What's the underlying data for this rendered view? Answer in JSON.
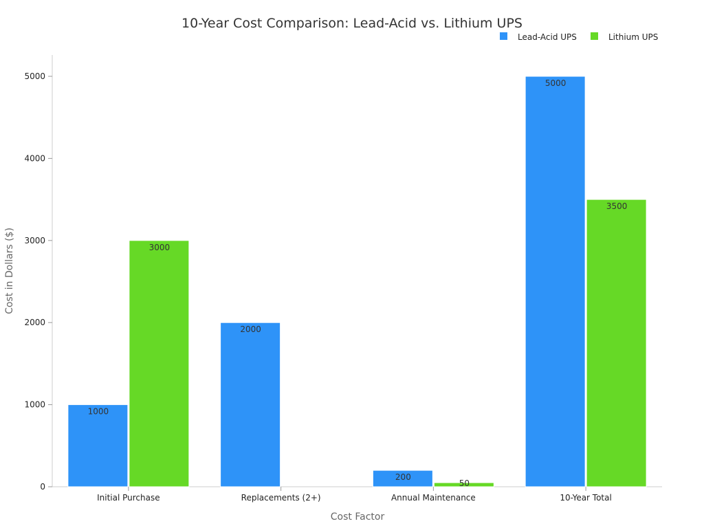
{
  "chart_data": {
    "type": "bar",
    "title": "10-Year Cost Comparison: Lead-Acid vs. Lithium UPS",
    "xlabel": "Cost Factor",
    "ylabel": "Cost in Dollars ($)",
    "categories": [
      "Initial Purchase",
      "Replacements (2+)",
      "Annual Maintenance",
      "10-Year Total"
    ],
    "series": [
      {
        "name": "Lead-Acid UPS",
        "color": "#2e93f8",
        "values": [
          1000,
          2000,
          200,
          5000
        ]
      },
      {
        "name": "Lithium UPS",
        "color": "#66d926",
        "values": [
          3000,
          0,
          50,
          3500
        ]
      }
    ],
    "ylim": [
      0,
      5250
    ],
    "yticks": [
      0,
      1000,
      2000,
      3000,
      4000,
      5000
    ],
    "grid": false,
    "legend": "top-right"
  }
}
